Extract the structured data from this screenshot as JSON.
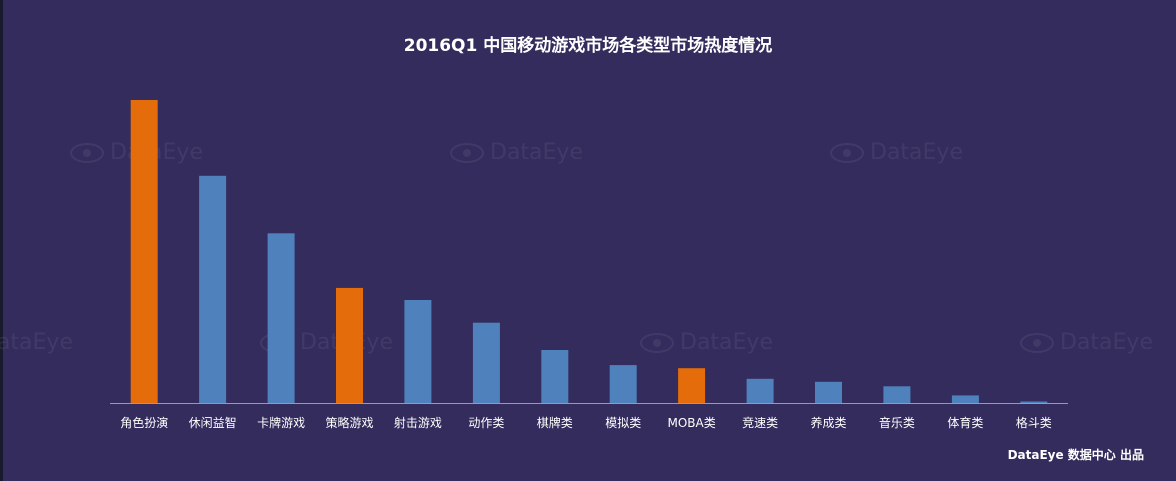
{
  "title": "2016Q1 中国移动游戏市场各类型市场热度情况",
  "footer": "DataEye 数据中心 出品",
  "watermark": "DataEye",
  "colors": {
    "background": "#332c5c",
    "bar_blue": "#4f81bd",
    "bar_orange": "#e46c0a",
    "axis": "#9a96b8",
    "text": "#ffffff"
  },
  "chart_data": {
    "type": "bar",
    "title": "2016Q1 中国移动游戏市场各类型市场热度情况",
    "xlabel": "",
    "ylabel": "",
    "grid": false,
    "categories": [
      "角色扮演",
      "休闲益智",
      "卡牌游戏",
      "策略游戏",
      "射击游戏",
      "动作类",
      "棋牌类",
      "模拟类",
      "MOBA类",
      "竞速类",
      "养成类",
      "音乐类",
      "体育类",
      "格斗类"
    ],
    "values": [
      100,
      75,
      56,
      38,
      34,
      26.5,
      17.5,
      12.5,
      11.5,
      8,
      7,
      5.5,
      2.5,
      0.5
    ],
    "highlight": [
      "角色扮演",
      "策略游戏",
      "MOBA类"
    ],
    "ylim": [
      0,
      100
    ]
  }
}
